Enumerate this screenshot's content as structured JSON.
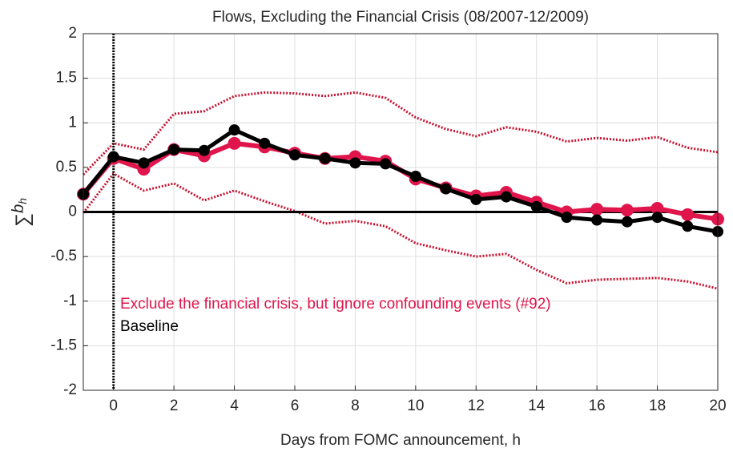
{
  "chart_data": {
    "type": "line",
    "title": "Flows, Excluding the Financial Crisis (08/2007-12/2009)",
    "xlabel": "Days from FOMC announcement, h",
    "ylabel": {
      "symbol": "∑",
      "base": "b",
      "sub": "h"
    },
    "x": [
      -1,
      0,
      1,
      2,
      3,
      4,
      5,
      6,
      7,
      8,
      9,
      10,
      11,
      12,
      13,
      14,
      15,
      16,
      17,
      18,
      19,
      20
    ],
    "series": [
      {
        "name": "Exclude the financial crisis, but ignore confounding events (#92)",
        "color": "#e0154b",
        "values": [
          0.2,
          0.6,
          0.48,
          0.7,
          0.63,
          0.77,
          0.73,
          0.66,
          0.6,
          0.62,
          0.57,
          0.37,
          0.27,
          0.18,
          0.22,
          0.11,
          0.0,
          0.03,
          0.02,
          0.04,
          -0.03,
          -0.08
        ]
      },
      {
        "name": "Baseline",
        "color": "#000000",
        "values": [
          0.2,
          0.62,
          0.55,
          0.7,
          0.69,
          0.92,
          0.77,
          0.64,
          0.6,
          0.55,
          0.54,
          0.4,
          0.26,
          0.14,
          0.17,
          0.06,
          -0.06,
          -0.09,
          -0.11,
          -0.06,
          -0.16,
          -0.22
        ]
      }
    ],
    "bands": {
      "color": "#c8102e",
      "upper": [
        0.42,
        0.77,
        0.7,
        1.1,
        1.13,
        1.3,
        1.34,
        1.33,
        1.3,
        1.34,
        1.28,
        1.06,
        0.93,
        0.85,
        0.95,
        0.9,
        0.79,
        0.83,
        0.8,
        0.84,
        0.72,
        0.67
      ],
      "lower": [
        -0.01,
        0.43,
        0.24,
        0.32,
        0.13,
        0.24,
        0.12,
        0.01,
        -0.13,
        -0.1,
        -0.16,
        -0.35,
        -0.43,
        -0.5,
        -0.47,
        -0.65,
        -0.8,
        -0.76,
        -0.75,
        -0.74,
        -0.78,
        -0.86
      ]
    },
    "xlim": [
      -1,
      20
    ],
    "ylim": [
      -2,
      2
    ],
    "xticks": [
      0,
      2,
      4,
      6,
      8,
      10,
      12,
      14,
      16,
      18,
      20
    ],
    "yticks": [
      -2,
      -1.5,
      -1,
      -0.5,
      0,
      0.5,
      1,
      1.5,
      2
    ],
    "vline": 0,
    "hline": 0,
    "grid": true,
    "legend": "southwest"
  }
}
